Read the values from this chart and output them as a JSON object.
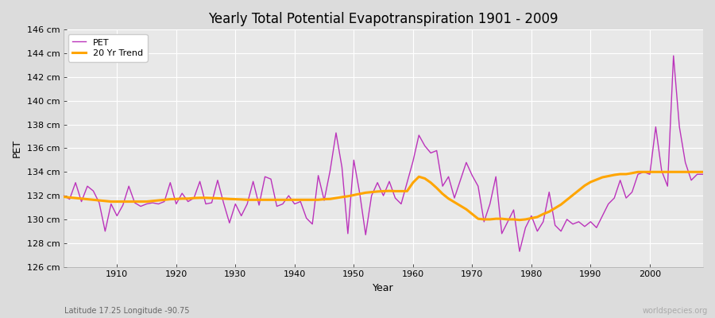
{
  "title": "Yearly Total Potential Evapotranspiration 1901 - 2009",
  "xlabel": "Year",
  "ylabel": "PET",
  "subtitle_left": "Latitude 17.25 Longitude -90.75",
  "subtitle_right": "worldspecies.org",
  "fig_bg_color": "#dcdcdc",
  "plot_bg_color": "#e8e8e8",
  "grid_color": "#ffffff",
  "pet_color": "#bb33bb",
  "trend_color": "#ffa500",
  "ylim": [
    126,
    146
  ],
  "ytick_step": 2,
  "years": [
    1901,
    1902,
    1903,
    1904,
    1905,
    1906,
    1907,
    1908,
    1909,
    1910,
    1911,
    1912,
    1913,
    1914,
    1915,
    1916,
    1917,
    1918,
    1919,
    1920,
    1921,
    1922,
    1923,
    1924,
    1925,
    1926,
    1927,
    1928,
    1929,
    1930,
    1931,
    1932,
    1933,
    1934,
    1935,
    1936,
    1937,
    1938,
    1939,
    1940,
    1941,
    1942,
    1943,
    1944,
    1945,
    1946,
    1947,
    1948,
    1949,
    1950,
    1951,
    1952,
    1953,
    1954,
    1955,
    1956,
    1957,
    1958,
    1959,
    1960,
    1961,
    1962,
    1963,
    1964,
    1965,
    1966,
    1967,
    1968,
    1969,
    1970,
    1971,
    1972,
    1973,
    1974,
    1975,
    1976,
    1977,
    1978,
    1979,
    1980,
    1981,
    1982,
    1983,
    1984,
    1985,
    1986,
    1987,
    1988,
    1989,
    1990,
    1991,
    1992,
    1993,
    1994,
    1995,
    1996,
    1997,
    1998,
    1999,
    2000,
    2001,
    2002,
    2003,
    2004,
    2005,
    2006,
    2007,
    2008,
    2009
  ],
  "pet_values": [
    132.0,
    131.7,
    133.1,
    131.5,
    132.8,
    132.4,
    131.4,
    129.0,
    131.3,
    130.3,
    131.2,
    132.8,
    131.4,
    131.1,
    131.3,
    131.4,
    131.3,
    131.5,
    133.1,
    131.3,
    132.2,
    131.5,
    131.8,
    133.2,
    131.3,
    131.4,
    133.3,
    131.4,
    129.7,
    131.3,
    130.3,
    131.3,
    133.2,
    131.2,
    133.6,
    133.4,
    131.1,
    131.3,
    132.0,
    131.3,
    131.5,
    130.1,
    129.6,
    133.7,
    131.6,
    134.1,
    137.3,
    134.4,
    128.8,
    135.0,
    132.2,
    128.7,
    132.0,
    133.1,
    132.0,
    133.2,
    131.8,
    131.3,
    133.1,
    134.9,
    137.1,
    136.2,
    135.6,
    135.8,
    132.8,
    133.6,
    131.8,
    133.3,
    134.8,
    133.7,
    132.8,
    129.8,
    131.3,
    133.6,
    128.8,
    129.8,
    130.8,
    127.3,
    129.3,
    130.3,
    129.0,
    129.8,
    132.3,
    129.5,
    129.0,
    130.0,
    129.6,
    129.8,
    129.4,
    129.8,
    129.3,
    130.3,
    131.3,
    131.8,
    133.3,
    131.8,
    132.3,
    133.8,
    134.0,
    133.8,
    137.8,
    134.1,
    132.8,
    143.8,
    137.8,
    134.8,
    133.3,
    133.8,
    133.8
  ],
  "trend_values": [
    131.9,
    131.85,
    131.8,
    131.75,
    131.7,
    131.65,
    131.6,
    131.55,
    131.5,
    131.5,
    131.5,
    131.5,
    131.5,
    131.5,
    131.5,
    131.55,
    131.6,
    131.65,
    131.7,
    131.72,
    131.75,
    131.75,
    131.8,
    131.82,
    131.82,
    131.8,
    131.78,
    131.75,
    131.72,
    131.7,
    131.68,
    131.65,
    131.65,
    131.65,
    131.65,
    131.65,
    131.65,
    131.65,
    131.65,
    131.65,
    131.65,
    131.65,
    131.65,
    131.65,
    131.7,
    131.72,
    131.8,
    131.88,
    131.95,
    132.05,
    132.15,
    132.25,
    132.3,
    132.35,
    132.38,
    132.4,
    132.38,
    132.38,
    132.38,
    133.1,
    133.6,
    133.45,
    133.1,
    132.65,
    132.15,
    131.75,
    131.45,
    131.15,
    130.85,
    130.45,
    130.05,
    130.0,
    130.0,
    130.05,
    130.05,
    130.0,
    130.0,
    129.95,
    130.0,
    130.1,
    130.2,
    130.45,
    130.65,
    130.95,
    131.25,
    131.65,
    132.05,
    132.45,
    132.85,
    133.15,
    133.35,
    133.55,
    133.65,
    133.75,
    133.82,
    133.82,
    133.9,
    134.0,
    134.0,
    134.0,
    134.0,
    134.0,
    134.0,
    134.0,
    134.0,
    134.0,
    134.0,
    134.0,
    134.0
  ]
}
